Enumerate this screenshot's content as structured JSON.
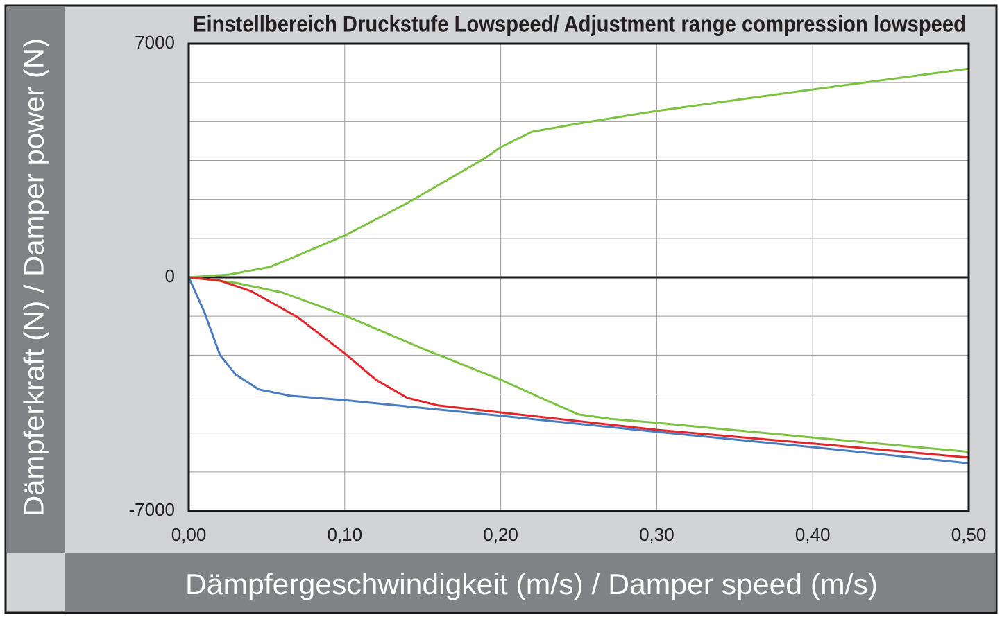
{
  "chart_data": {
    "type": "line",
    "title": "Einstellbereich Druckstufe Lowspeed/ Adjustment range compression lowspeed",
    "x_label": "Dämpfergeschwindigkeit (m/s) / Damper speed (m/s)",
    "y_label": "Dämpferkraft (N) / Damper power (N)",
    "xlim": [
      0,
      0.5
    ],
    "ylim": [
      -7000,
      7000
    ],
    "xticks": [
      {
        "value": 0,
        "label": "0,00"
      },
      {
        "value": 0.1,
        "label": "0,10"
      },
      {
        "value": 0.2,
        "label": "0,20"
      },
      {
        "value": 0.3,
        "label": "0,30"
      },
      {
        "value": 0.4,
        "label": "0,40"
      },
      {
        "value": 0.5,
        "label": "0,50"
      }
    ],
    "yticks": [
      -7000,
      0,
      7000
    ],
    "grid": true,
    "series": [
      {
        "color": "#7dc242",
        "x": [
          0,
          0.026,
          0.052,
          0.066,
          0.1,
          0.14,
          0.19,
          0.2,
          0.22,
          0.25,
          0.3,
          0.4,
          0.5
        ],
        "values": [
          0,
          83,
          310,
          580,
          1250,
          2220,
          3570,
          3900,
          4360,
          4610,
          4985,
          5630,
          6250
        ]
      },
      {
        "color": "#7dc242",
        "x": [
          0,
          0.03,
          0.06,
          0.1,
          0.15,
          0.2,
          0.23,
          0.25,
          0.27,
          0.3,
          0.4,
          0.5
        ],
        "values": [
          0,
          -166,
          -457,
          -1140,
          -2140,
          -3070,
          -3700,
          -4110,
          -4240,
          -4360,
          -4800,
          -5230
        ]
      },
      {
        "color": "#e3262b",
        "x": [
          0,
          0.02,
          0.04,
          0.07,
          0.1,
          0.12,
          0.14,
          0.16,
          0.2,
          0.3,
          0.4,
          0.5
        ],
        "values": [
          0,
          -100,
          -415,
          -1200,
          -2280,
          -3070,
          -3610,
          -3840,
          -4050,
          -4570,
          -4980,
          -5400
        ]
      },
      {
        "color": "#4a7cc0",
        "x": [
          0,
          0.01,
          0.02,
          0.03,
          0.045,
          0.065,
          0.1,
          0.2,
          0.3,
          0.4,
          0.5
        ],
        "values": [
          0,
          -1040,
          -2330,
          -2910,
          -3360,
          -3550,
          -3680,
          -4150,
          -4630,
          -5090,
          -5570
        ]
      }
    ]
  }
}
